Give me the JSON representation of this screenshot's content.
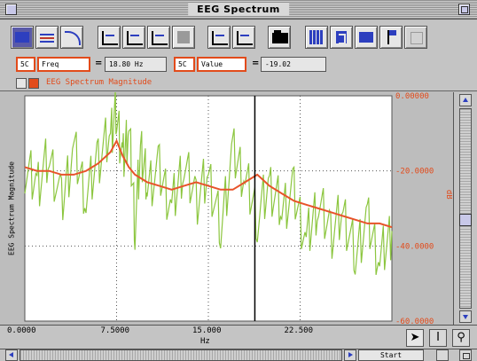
{
  "window": {
    "title": "EEG Spectrum"
  },
  "controls": {
    "left_channel": "5C",
    "left_field": "Freq",
    "left_equals": "=",
    "left_readout": "18.80 Hz",
    "right_channel": "5C",
    "right_field": "Value",
    "right_equals": "=",
    "right_readout": "-19.02"
  },
  "legend": {
    "label": "EEG Spectrum Magnitude"
  },
  "toolbar": {
    "icons": [
      "stacked-plot-icon",
      "overlay-plot-icon",
      "curve-icon",
      "scale-icon",
      "data-points-icon",
      "axis-graph-icon",
      "cursor-icon",
      "zoom-x-icon",
      "zoom-y-icon",
      "folder-icon",
      "grid-icon",
      "sigma-icon",
      "abs-icon",
      "flag-icon",
      "disabled-tool-icon"
    ]
  },
  "bottom": {
    "start_label": "Start"
  },
  "colors": {
    "raw_series": "#8cc63f",
    "smoothed_series": "#e8532a",
    "plot_background": "#ffffff",
    "accent_orange": "#e24b1b"
  },
  "chart_data": {
    "type": "line",
    "title": "",
    "xlabel": "Hz",
    "ylabel": "EEG Spectrum Magnitude",
    "y2label": "dB",
    "xlim": [
      0,
      30
    ],
    "ylim": [
      -60,
      0
    ],
    "x_ticks": [
      "0.0000",
      "7.5000",
      "15.000",
      "22.500"
    ],
    "y_ticks": [
      "0.00000",
      "-20.0000",
      "-40.0000",
      "-60.0000"
    ],
    "cursor_x": 18.8,
    "grid": true,
    "series": [
      {
        "style": "raw",
        "x": [
          0.0,
          1.0,
          2.0,
          3.0,
          4.0,
          5.0,
          6.0,
          7.0,
          7.5,
          8.0,
          8.5,
          9.0,
          9.5,
          10.0,
          11.0,
          12.0,
          13.0,
          14.0,
          15.0,
          16.0,
          17.0,
          18.0,
          19.0,
          20.0,
          21.0,
          22.0,
          23.0,
          24.0,
          25.0,
          26.0,
          27.0,
          28.0,
          29.0,
          30.0
        ],
        "y": [
          -19,
          -24,
          -16,
          -29,
          -14,
          -27,
          -17,
          -10,
          -4,
          -18,
          -8,
          -34,
          -14,
          -24,
          -20,
          -30,
          -18,
          -28,
          -21,
          -35,
          -15,
          -22,
          -32,
          -24,
          -30,
          -26,
          -39,
          -28,
          -37,
          -31,
          -42,
          -33,
          -44,
          -36
        ]
      },
      {
        "style": "smoothed",
        "x": [
          0.0,
          1.0,
          2.0,
          3.0,
          4.0,
          5.0,
          6.0,
          7.0,
          7.5,
          8.0,
          8.5,
          9.0,
          9.5,
          10.0,
          11.0,
          12.0,
          13.0,
          14.0,
          15.0,
          16.0,
          17.0,
          18.0,
          19.0,
          20.0,
          21.0,
          22.0,
          23.0,
          24.0,
          25.0,
          26.0,
          27.0,
          28.0,
          29.0,
          30.0
        ],
        "y": [
          -19,
          -20,
          -20,
          -21,
          -21,
          -20,
          -18,
          -15,
          -12,
          -16,
          -19,
          -21,
          -22,
          -23,
          -24,
          -25,
          -24,
          -23,
          -24,
          -25,
          -25,
          -23,
          -21,
          -24,
          -26,
          -28,
          -29,
          -30,
          -31,
          -32,
          -33,
          -34,
          -34,
          -35
        ]
      }
    ]
  }
}
